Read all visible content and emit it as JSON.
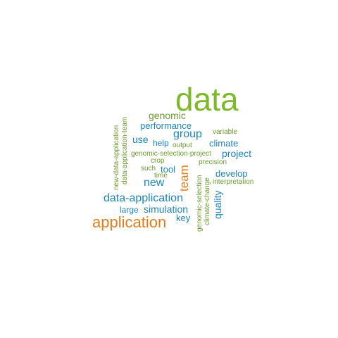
{
  "palette": {
    "green": "#7cb92b",
    "orange": "#e37d19",
    "blue": "#1c86b8",
    "olive": "#6b9a2f"
  },
  "words": [
    {
      "text": "data",
      "color": "green"
    },
    {
      "text": "genomic",
      "color": "olive"
    },
    {
      "text": "performance",
      "color": "blue"
    },
    {
      "text": "group",
      "color": "blue"
    },
    {
      "text": "variable",
      "color": "olive"
    },
    {
      "text": "use",
      "color": "blue"
    },
    {
      "text": "help",
      "color": "blue"
    },
    {
      "text": "output",
      "color": "olive"
    },
    {
      "text": "climate",
      "color": "blue"
    },
    {
      "text": "genomic-selection-project",
      "color": "olive"
    },
    {
      "text": "project",
      "color": "blue"
    },
    {
      "text": "crop",
      "color": "olive"
    },
    {
      "text": "precision",
      "color": "olive"
    },
    {
      "text": "such",
      "color": "olive"
    },
    {
      "text": "tool",
      "color": "blue"
    },
    {
      "text": "time",
      "color": "olive"
    },
    {
      "text": "develop",
      "color": "blue"
    },
    {
      "text": "new",
      "color": "blue"
    },
    {
      "text": "interpretation",
      "color": "olive"
    },
    {
      "text": "data-application",
      "color": "blue"
    },
    {
      "text": "large",
      "color": "blue"
    },
    {
      "text": "simulation",
      "color": "blue"
    },
    {
      "text": "application",
      "color": "orange"
    },
    {
      "text": "key",
      "color": "blue"
    },
    {
      "text": "new-data-application",
      "color": "olive"
    },
    {
      "text": "data-application-team",
      "color": "olive"
    },
    {
      "text": "team",
      "color": "orange"
    },
    {
      "text": "genomic-selection",
      "color": "olive"
    },
    {
      "text": "climate-change",
      "color": "olive"
    },
    {
      "text": "quality",
      "color": "blue"
    }
  ]
}
